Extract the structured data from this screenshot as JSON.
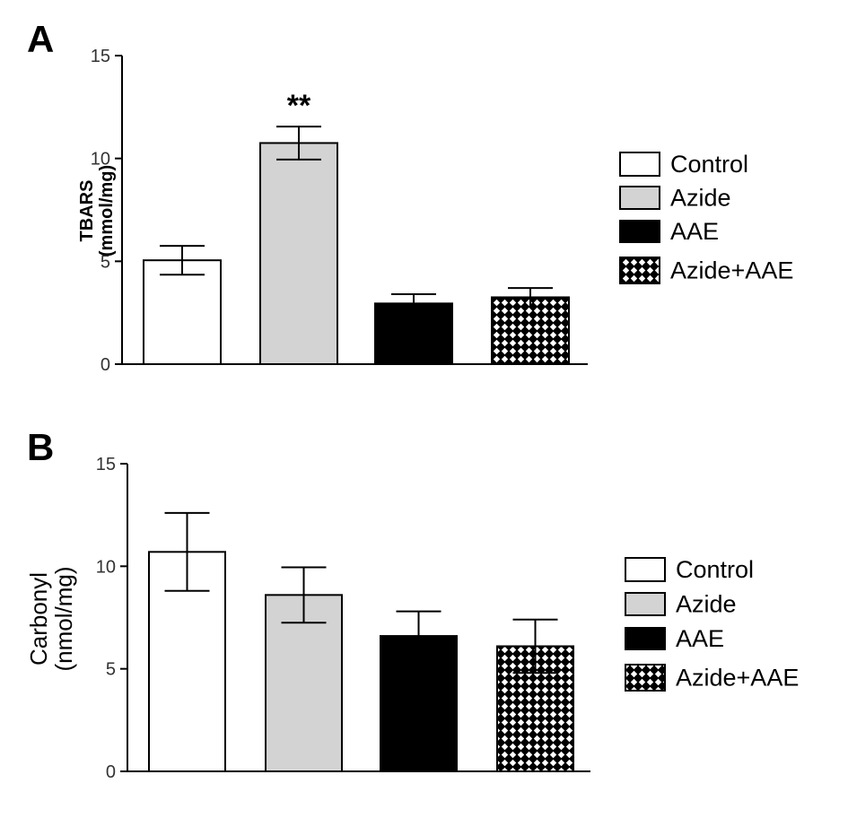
{
  "chart_data": [
    {
      "type": "bar",
      "panel_label": "A",
      "title": "",
      "xlabel": "",
      "ylabel_line1": "TBARS",
      "ylabel_line2": "(mmol/mg)",
      "ylim": [
        0,
        15
      ],
      "yticks": [
        "0",
        "5",
        "10",
        "15"
      ],
      "categories": [
        "Control",
        "Azide",
        "AAE",
        "Azide+AAE"
      ],
      "values": [
        5.05,
        10.75,
        2.95,
        3.25
      ],
      "errors": [
        0.7,
        0.8,
        0.45,
        0.45
      ],
      "annotations": [
        {
          "category": "Azide",
          "text": "**"
        }
      ],
      "legend": [
        "Control",
        "Azide",
        "AAE",
        "Azide+AAE"
      ],
      "legend_placement": "right"
    },
    {
      "type": "bar",
      "panel_label": "B",
      "title": "",
      "xlabel": "",
      "ylabel_line1": "Carbonyl",
      "ylabel_line2": "(nmol/mg)",
      "ylim": [
        0,
        15
      ],
      "yticks": [
        "0",
        "5",
        "10",
        "15"
      ],
      "categories": [
        "Control",
        "Azide",
        "AAE",
        "Azide+AAE"
      ],
      "values": [
        10.7,
        8.6,
        6.6,
        6.1
      ],
      "errors": [
        1.9,
        1.35,
        1.2,
        1.3
      ],
      "annotations": [],
      "legend": [
        "Control",
        "Azide",
        "AAE",
        "Azide+AAE"
      ],
      "legend_placement": "right"
    }
  ],
  "colors": {
    "Control": "#ffffff",
    "Azide": "#d3d3d3",
    "AAE": "#000000",
    "Azide+AAE": "pattern"
  }
}
